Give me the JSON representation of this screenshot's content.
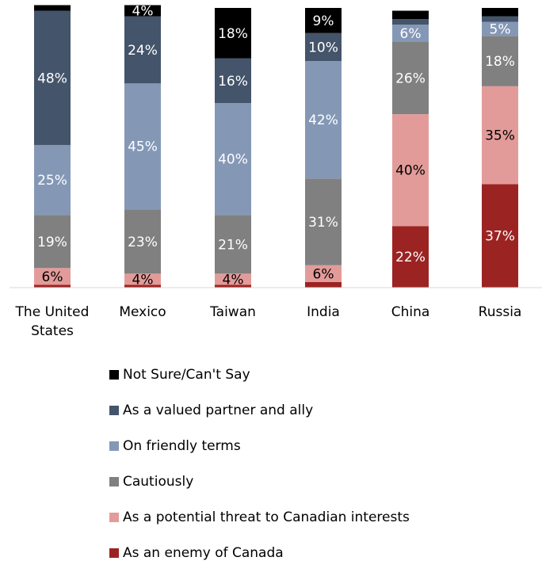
{
  "chart_data": {
    "type": "bar",
    "stacked": true,
    "categories": [
      "The United States",
      "Mexico",
      "Taiwan",
      "India",
      "China",
      "Russia"
    ],
    "category_lines": [
      [
        "The United",
        "States"
      ],
      [
        "Mexico"
      ],
      [
        "Taiwan"
      ],
      [
        "India"
      ],
      [
        "China"
      ],
      [
        "Russia"
      ]
    ],
    "series": [
      {
        "name": "As an enemy of Canada",
        "color": "#9b2423",
        "values": [
          1,
          1,
          1,
          2,
          22,
          37
        ],
        "labels": [
          "",
          "",
          "",
          "",
          "22%",
          "37%"
        ]
      },
      {
        "name": "As a potential threat to Canadian interests",
        "color": "#e39b99",
        "values": [
          6,
          4,
          4,
          6,
          40,
          35
        ],
        "labels": [
          "6%",
          "4%",
          "4%",
          "6%",
          "40%",
          "35%"
        ]
      },
      {
        "name": "Cautiously",
        "color": "#808080",
        "values": [
          19,
          23,
          21,
          31,
          26,
          18
        ],
        "labels": [
          "19%",
          "23%",
          "21%",
          "31%",
          "26%",
          "18%"
        ]
      },
      {
        "name": "On friendly terms",
        "color": "#8498b6",
        "values": [
          25,
          45,
          40,
          42,
          6,
          5
        ],
        "labels": [
          "25%",
          "45%",
          "40%",
          "42%",
          "6%",
          "5%"
        ]
      },
      {
        "name": "As a valued partner and ally",
        "color": "#44546a",
        "values": [
          48,
          24,
          16,
          10,
          2,
          2
        ],
        "labels": [
          "48%",
          "24%",
          "16%",
          "10%",
          "",
          ""
        ]
      },
      {
        "name": "Not Sure/Can't Say",
        "color": "#000000",
        "values": [
          2,
          4,
          18,
          9,
          3,
          3
        ],
        "labels": [
          "",
          "4%",
          "18%",
          "9%",
          "",
          ""
        ]
      }
    ],
    "ylim": [
      0,
      100
    ],
    "grid": false,
    "legend_position": "bottom",
    "legend_order": [
      "Not Sure/Can't Say",
      "As a valued partner and ally",
      "On friendly terms",
      "Cautiously",
      "As a potential threat to Canadian interests",
      "As an enemy of Canada"
    ]
  }
}
